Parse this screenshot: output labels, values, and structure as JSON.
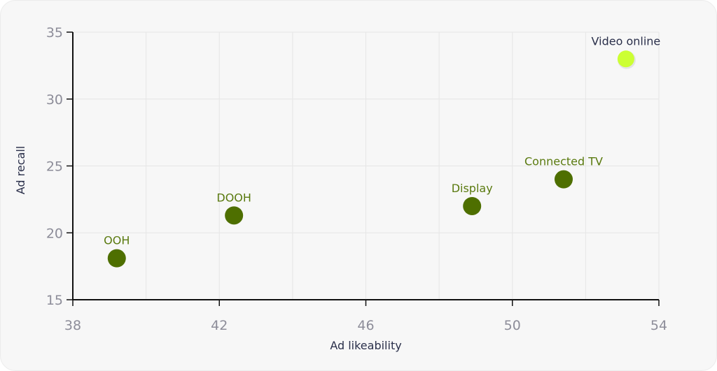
{
  "chart_data": {
    "type": "scatter",
    "title": "",
    "xlabel": "Ad likeability",
    "ylabel": "Ad recall",
    "xlim": [
      38,
      54
    ],
    "ylim": [
      15,
      35
    ],
    "x_ticks": [
      38,
      42,
      46,
      50,
      54
    ],
    "y_ticks": [
      15,
      20,
      25,
      30,
      35
    ],
    "grid": true,
    "colors": {
      "point": "#4e6f00",
      "highlight": "#ccff33",
      "label": "#5a7a0f",
      "highlight_label": "#2a2f4a",
      "axis": "#111111",
      "grid": "#e6e6e6"
    },
    "points": [
      {
        "label": "OOH",
        "x": 39.2,
        "y": 18.1,
        "highlight": false
      },
      {
        "label": "DOOH",
        "x": 42.4,
        "y": 21.3,
        "highlight": false
      },
      {
        "label": "Display",
        "x": 48.9,
        "y": 22.0,
        "highlight": false
      },
      {
        "label": "Connected TV",
        "x": 51.4,
        "y": 24.0,
        "highlight": false
      },
      {
        "label": "Video online",
        "x": 53.1,
        "y": 33.0,
        "highlight": true
      }
    ]
  }
}
